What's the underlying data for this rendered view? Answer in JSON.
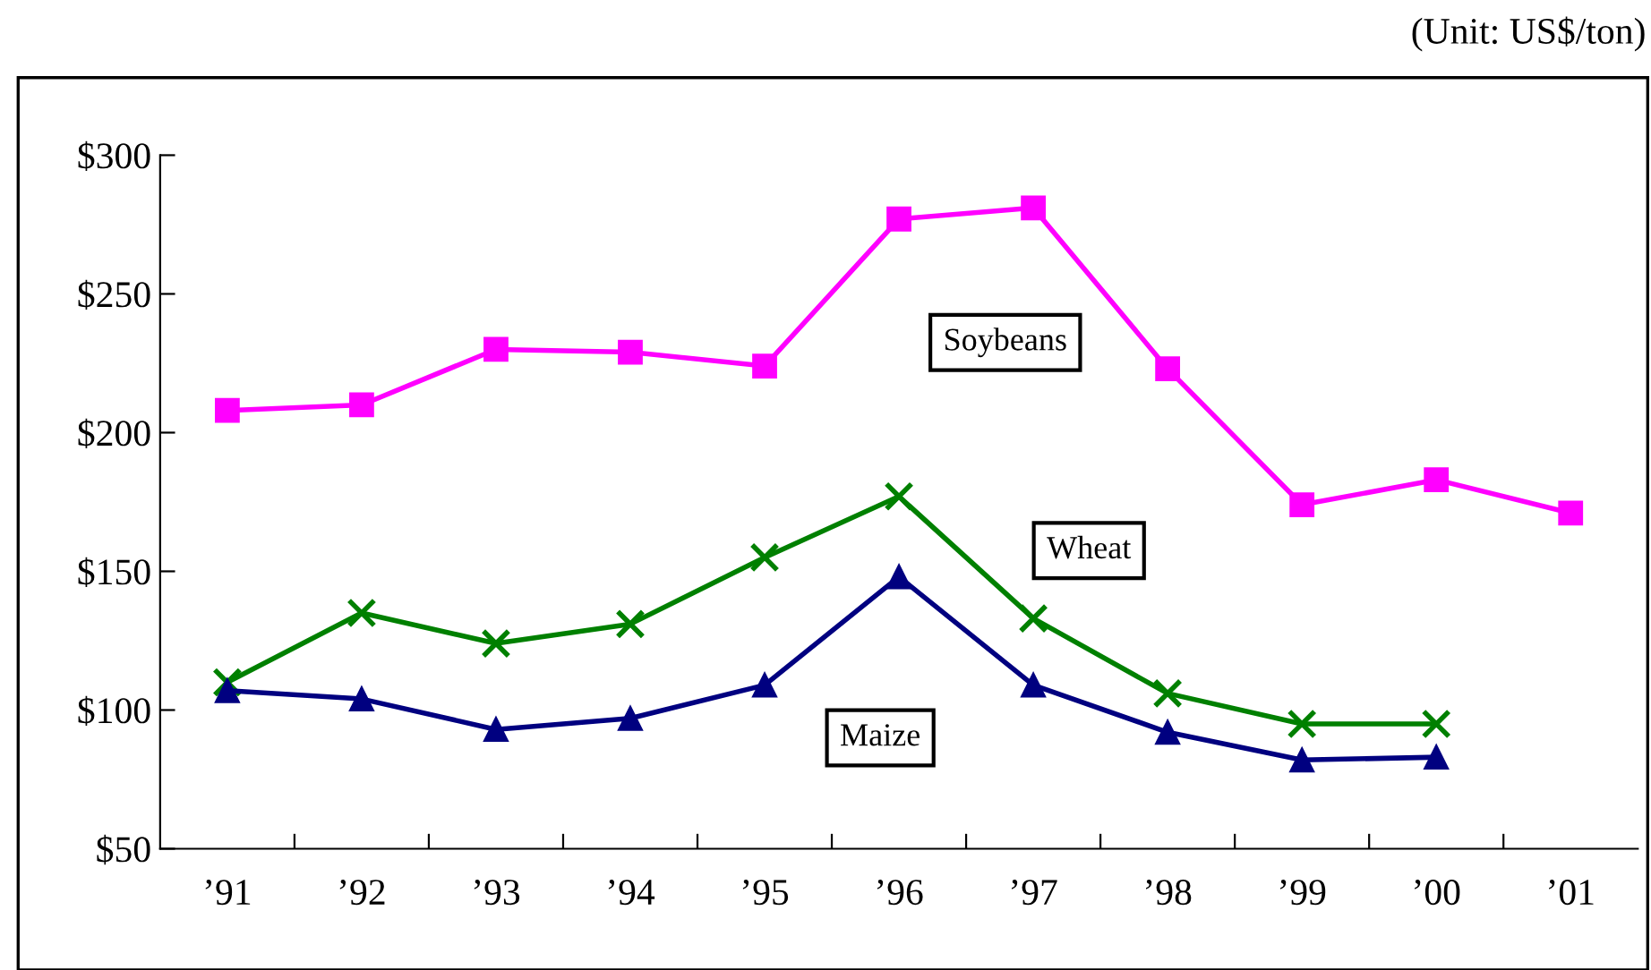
{
  "chart_data": {
    "type": "line",
    "annotations": [
      "(Unit: US$/ton)"
    ],
    "categories": [
      "’91",
      "’92",
      "’93",
      "’94",
      "’95",
      "’96",
      "’97",
      "’98",
      "’99",
      "’00",
      "’01"
    ],
    "series": [
      {
        "name": "Soybeans",
        "color": "#ff00ff",
        "marker": "square",
        "values": [
          208,
          210,
          230,
          229,
          224,
          277,
          281,
          223,
          174,
          183,
          171
        ]
      },
      {
        "name": "Wheat",
        "color": "#008000",
        "marker": "cross",
        "values": [
          110,
          135,
          124,
          131,
          155,
          177,
          133,
          106,
          95,
          95,
          null
        ]
      },
      {
        "name": "Maize",
        "color": "#000080",
        "marker": "triangle",
        "values": [
          107,
          104,
          93,
          97,
          109,
          148,
          109,
          92,
          82,
          83,
          null
        ]
      }
    ],
    "ylim": [
      50,
      300
    ],
    "yticks": [
      {
        "value": 50,
        "label": "$50"
      },
      {
        "value": 100,
        "label": "$100"
      },
      {
        "value": 150,
        "label": "$150"
      },
      {
        "value": 200,
        "label": "$200"
      },
      {
        "value": 250,
        "label": "$250"
      },
      {
        "value": 300,
        "label": "$300"
      }
    ],
    "grid": false,
    "legend": false
  }
}
